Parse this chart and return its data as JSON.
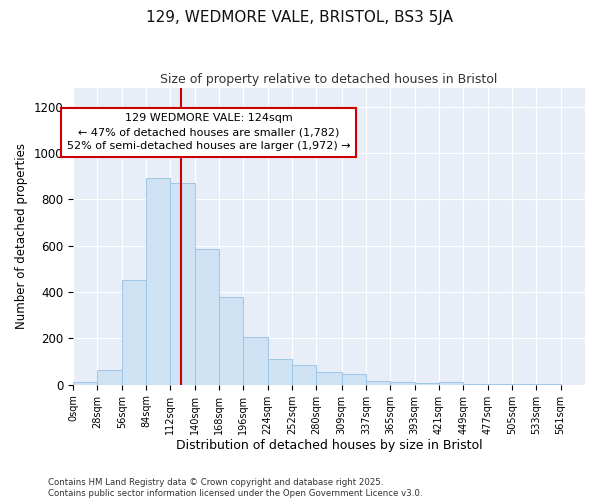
{
  "title1": "129, WEDMORE VALE, BRISTOL, BS3 5JA",
  "title2": "Size of property relative to detached houses in Bristol",
  "xlabel": "Distribution of detached houses by size in Bristol",
  "ylabel": "Number of detached properties",
  "bin_edges": [
    0,
    28,
    56,
    84,
    112,
    140,
    168,
    196,
    224,
    252,
    280,
    309,
    337,
    365,
    393,
    421,
    449,
    477,
    505,
    533,
    561
  ],
  "bar_heights": [
    10,
    65,
    450,
    890,
    870,
    585,
    380,
    205,
    110,
    85,
    55,
    48,
    18,
    10,
    8,
    12,
    4,
    4,
    4,
    4
  ],
  "bar_color": "#cfe2f3",
  "bar_edge_color": "#9fc5e8",
  "property_size": 124,
  "marker_line_color": "#cc0000",
  "annotation_line1": "129 WEDMORE VALE: 124sqm",
  "annotation_line2": "← 47% of detached houses are smaller (1,782)",
  "annotation_line3": "52% of semi-detached houses are larger (1,972) →",
  "annotation_box_color": "#ffffff",
  "annotation_box_edge_color": "#cc0000",
  "ylim": [
    0,
    1280
  ],
  "yticks": [
    0,
    200,
    400,
    600,
    800,
    1000,
    1200
  ],
  "bg_color": "#ffffff",
  "plot_bg_color": "#e8eef8",
  "grid_color": "#ffffff",
  "footnote": "Contains HM Land Registry data © Crown copyright and database right 2025.\nContains public sector information licensed under the Open Government Licence v3.0.",
  "tick_labels": [
    "0sqm",
    "28sqm",
    "56sqm",
    "84sqm",
    "112sqm",
    "140sqm",
    "168sqm",
    "196sqm",
    "224sqm",
    "252sqm",
    "280sqm",
    "309sqm",
    "337sqm",
    "365sqm",
    "393sqm",
    "421sqm",
    "449sqm",
    "477sqm",
    "505sqm",
    "533sqm",
    "561sqm"
  ]
}
